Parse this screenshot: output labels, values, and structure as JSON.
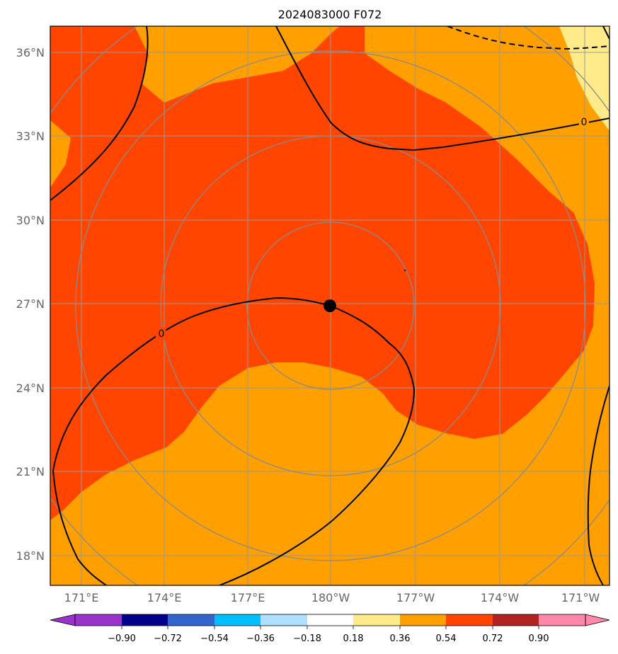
{
  "title": "2024083000 F072",
  "map": {
    "center_marker_label": "",
    "lat_ticks": [
      "36°N",
      "33°N",
      "30°N",
      "27°N",
      "24°N",
      "21°N",
      "18°N"
    ],
    "lon_ticks": [
      "171°E",
      "174°E",
      "177°E",
      "180°W",
      "177°W",
      "174°W",
      "171°W"
    ],
    "contour_labels": [
      "0",
      "0"
    ]
  },
  "colorbar": {
    "ticks": [
      "−0.90",
      "−0.72",
      "−0.54",
      "−0.36",
      "−0.18",
      "0.18",
      "0.36",
      "0.54",
      "0.72",
      "0.90"
    ],
    "colors": [
      "#9933cc",
      "#00008b",
      "#3366cc",
      "#00bfff",
      "#b0e0ff",
      "#ffffff",
      "#ffeb8a",
      "#ffa000",
      "#ff4500",
      "#b22222",
      "#ff88aa",
      "#ff88aa"
    ]
  },
  "fill_colors": {
    "bin_018_036": "#ffeb8a",
    "bin_036_054": "#ffa000",
    "bin_054_072": "#ff4500"
  }
}
